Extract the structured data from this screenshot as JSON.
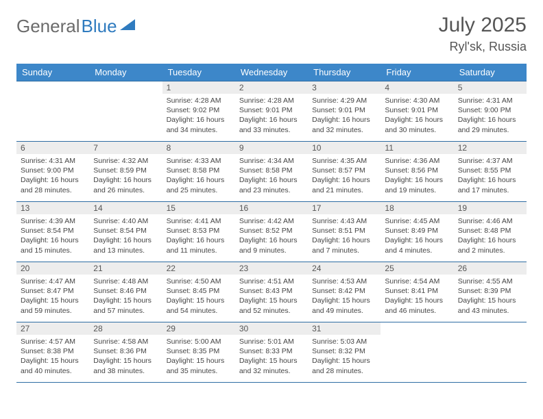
{
  "brand": {
    "part1": "General",
    "part2": "Blue"
  },
  "title": "July 2025",
  "location": "Ryl'sk, Russia",
  "colors": {
    "header_bg": "#3d87c9",
    "header_text": "#ffffff",
    "border": "#2d6ca3",
    "daynum_bg": "#ededed",
    "text": "#444444",
    "brand_gray": "#6b6b6b",
    "brand_blue": "#2f7bbf"
  },
  "weekdays": [
    "Sunday",
    "Monday",
    "Tuesday",
    "Wednesday",
    "Thursday",
    "Friday",
    "Saturday"
  ],
  "first_weekday_index": 2,
  "days": [
    {
      "n": 1,
      "sr": "4:28 AM",
      "ss": "9:02 PM",
      "dl": "16 hours and 34 minutes."
    },
    {
      "n": 2,
      "sr": "4:28 AM",
      "ss": "9:01 PM",
      "dl": "16 hours and 33 minutes."
    },
    {
      "n": 3,
      "sr": "4:29 AM",
      "ss": "9:01 PM",
      "dl": "16 hours and 32 minutes."
    },
    {
      "n": 4,
      "sr": "4:30 AM",
      "ss": "9:01 PM",
      "dl": "16 hours and 30 minutes."
    },
    {
      "n": 5,
      "sr": "4:31 AM",
      "ss": "9:00 PM",
      "dl": "16 hours and 29 minutes."
    },
    {
      "n": 6,
      "sr": "4:31 AM",
      "ss": "9:00 PM",
      "dl": "16 hours and 28 minutes."
    },
    {
      "n": 7,
      "sr": "4:32 AM",
      "ss": "8:59 PM",
      "dl": "16 hours and 26 minutes."
    },
    {
      "n": 8,
      "sr": "4:33 AM",
      "ss": "8:58 PM",
      "dl": "16 hours and 25 minutes."
    },
    {
      "n": 9,
      "sr": "4:34 AM",
      "ss": "8:58 PM",
      "dl": "16 hours and 23 minutes."
    },
    {
      "n": 10,
      "sr": "4:35 AM",
      "ss": "8:57 PM",
      "dl": "16 hours and 21 minutes."
    },
    {
      "n": 11,
      "sr": "4:36 AM",
      "ss": "8:56 PM",
      "dl": "16 hours and 19 minutes."
    },
    {
      "n": 12,
      "sr": "4:37 AM",
      "ss": "8:55 PM",
      "dl": "16 hours and 17 minutes."
    },
    {
      "n": 13,
      "sr": "4:39 AM",
      "ss": "8:54 PM",
      "dl": "16 hours and 15 minutes."
    },
    {
      "n": 14,
      "sr": "4:40 AM",
      "ss": "8:54 PM",
      "dl": "16 hours and 13 minutes."
    },
    {
      "n": 15,
      "sr": "4:41 AM",
      "ss": "8:53 PM",
      "dl": "16 hours and 11 minutes."
    },
    {
      "n": 16,
      "sr": "4:42 AM",
      "ss": "8:52 PM",
      "dl": "16 hours and 9 minutes."
    },
    {
      "n": 17,
      "sr": "4:43 AM",
      "ss": "8:51 PM",
      "dl": "16 hours and 7 minutes."
    },
    {
      "n": 18,
      "sr": "4:45 AM",
      "ss": "8:49 PM",
      "dl": "16 hours and 4 minutes."
    },
    {
      "n": 19,
      "sr": "4:46 AM",
      "ss": "8:48 PM",
      "dl": "16 hours and 2 minutes."
    },
    {
      "n": 20,
      "sr": "4:47 AM",
      "ss": "8:47 PM",
      "dl": "15 hours and 59 minutes."
    },
    {
      "n": 21,
      "sr": "4:48 AM",
      "ss": "8:46 PM",
      "dl": "15 hours and 57 minutes."
    },
    {
      "n": 22,
      "sr": "4:50 AM",
      "ss": "8:45 PM",
      "dl": "15 hours and 54 minutes."
    },
    {
      "n": 23,
      "sr": "4:51 AM",
      "ss": "8:43 PM",
      "dl": "15 hours and 52 minutes."
    },
    {
      "n": 24,
      "sr": "4:53 AM",
      "ss": "8:42 PM",
      "dl": "15 hours and 49 minutes."
    },
    {
      "n": 25,
      "sr": "4:54 AM",
      "ss": "8:41 PM",
      "dl": "15 hours and 46 minutes."
    },
    {
      "n": 26,
      "sr": "4:55 AM",
      "ss": "8:39 PM",
      "dl": "15 hours and 43 minutes."
    },
    {
      "n": 27,
      "sr": "4:57 AM",
      "ss": "8:38 PM",
      "dl": "15 hours and 40 minutes."
    },
    {
      "n": 28,
      "sr": "4:58 AM",
      "ss": "8:36 PM",
      "dl": "15 hours and 38 minutes."
    },
    {
      "n": 29,
      "sr": "5:00 AM",
      "ss": "8:35 PM",
      "dl": "15 hours and 35 minutes."
    },
    {
      "n": 30,
      "sr": "5:01 AM",
      "ss": "8:33 PM",
      "dl": "15 hours and 32 minutes."
    },
    {
      "n": 31,
      "sr": "5:03 AM",
      "ss": "8:32 PM",
      "dl": "15 hours and 28 minutes."
    }
  ],
  "labels": {
    "sunrise": "Sunrise:",
    "sunset": "Sunset:",
    "daylight": "Daylight:"
  }
}
